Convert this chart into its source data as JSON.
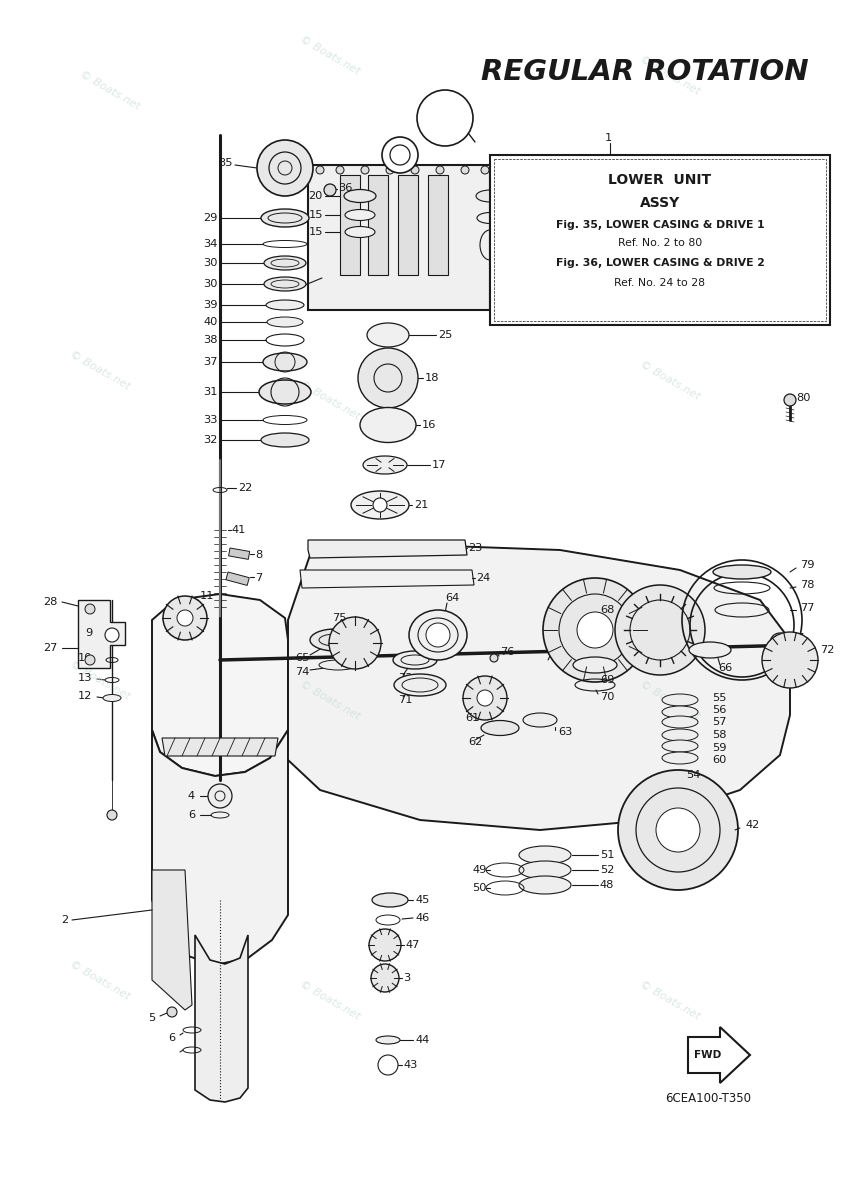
{
  "title": "REGULAR ROTATION",
  "watermark": "© Boats.net",
  "box_title_line1": "LOWER  UNIT",
  "box_title_line2": "ASSY",
  "box_line3": "Fig. 35, LOWER CASING & DRIVE 1",
  "box_line4": "Ref. No. 2 to 80",
  "box_line5": "Fig. 36, LOWER CASING & DRIVE 2",
  "box_line6": "Ref. No. 24 to 28",
  "part_number_label": "6CEA100-T350",
  "bg_color": "#ffffff",
  "line_color": "#1a1a1a",
  "watermark_color": "#c8dcd0",
  "title_font_size": 21,
  "label_font_size": 8.2
}
